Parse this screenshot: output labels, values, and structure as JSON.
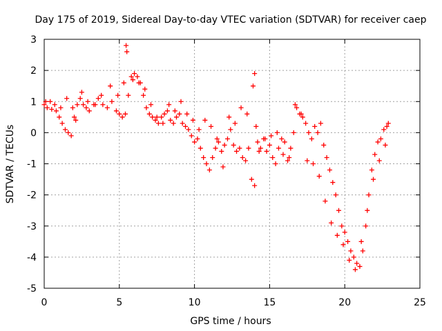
{
  "chart_data": {
    "type": "scatter",
    "title": "Day 175 of 2019, Sidereal Day-to-day VTEC variation (SDTVAR) for receiver caep",
    "xlabel": "GPS time / hours",
    "ylabel": "SDTVAR / TECUs",
    "xlim": [
      0,
      25
    ],
    "ylim": [
      -5,
      3
    ],
    "x_ticks": [
      0,
      5,
      10,
      15,
      20,
      25
    ],
    "y_ticks": [
      -5,
      -4,
      -3,
      -2,
      -1,
      0,
      1,
      2,
      3
    ],
    "x_tick_labels": [
      "0",
      "5",
      "10",
      "15",
      "20",
      "25"
    ],
    "y_tick_labels": [
      "-5",
      "-4",
      "-3",
      "-2",
      "-1",
      "0",
      "1",
      "2",
      "3"
    ],
    "grid": true,
    "marker": "+",
    "series": [
      {
        "name": "caep",
        "color": "#ff0000",
        "x": [
          0.0,
          0.2,
          0.5,
          0.8,
          1.0,
          1.2,
          1.4,
          1.6,
          1.8,
          2.0,
          2.2,
          2.4,
          2.6,
          2.8,
          3.0,
          3.3,
          3.6,
          3.9,
          4.2,
          4.5,
          4.8,
          5.0,
          5.2,
          5.4,
          5.6,
          5.8,
          6.0,
          6.2,
          6.4,
          6.6,
          6.8,
          7.0,
          7.2,
          7.4,
          7.6,
          7.8,
          8.0,
          8.2,
          8.4,
          8.6,
          8.8,
          9.0,
          9.2,
          9.4,
          9.6,
          9.8,
          10.0,
          10.2,
          10.4,
          10.6,
          10.8,
          11.0,
          11.2,
          11.4,
          11.6,
          11.8,
          12.0,
          12.2,
          12.4,
          12.6,
          12.8,
          13.0,
          13.2,
          13.4,
          13.6,
          13.8,
          14.0,
          14.2,
          14.4,
          14.6,
          14.8,
          15.0,
          15.2,
          15.4,
          15.6,
          15.8,
          16.0,
          16.2,
          16.4,
          16.6,
          16.8,
          17.0,
          17.2,
          17.4,
          17.6,
          17.8,
          18.0,
          18.2,
          18.4,
          18.6,
          18.8,
          19.0,
          19.2,
          19.4,
          19.6,
          19.8,
          20.0,
          20.2,
          20.4,
          20.6,
          20.8,
          21.0,
          21.2,
          21.4,
          21.6,
          21.8,
          22.0,
          22.2,
          22.4,
          22.6,
          22.8,
          0.1,
          0.4,
          0.7,
          1.1,
          1.5,
          1.9,
          2.1,
          2.5,
          2.9,
          3.4,
          3.8,
          4.4,
          4.9,
          5.3,
          5.45,
          5.5,
          5.9,
          6.3,
          6.7,
          7.1,
          7.5,
          7.9,
          8.3,
          8.7,
          9.1,
          9.5,
          9.9,
          10.3,
          10.7,
          11.1,
          11.5,
          11.9,
          12.3,
          12.7,
          13.1,
          13.5,
          13.9,
          14.0,
          14.1,
          14.3,
          14.7,
          15.1,
          15.5,
          15.9,
          16.3,
          16.7,
          17.1,
          17.5,
          17.9,
          18.3,
          18.7,
          19.1,
          19.5,
          19.9,
          20.3,
          20.7,
          21.1,
          21.5,
          21.9,
          22.3,
          22.7,
          22.9
        ],
        "y": [
          0.9,
          0.8,
          0.75,
          0.7,
          0.5,
          0.3,
          0.1,
          0.0,
          -0.1,
          0.5,
          0.9,
          1.1,
          0.9,
          0.8,
          0.7,
          0.9,
          1.1,
          0.9,
          0.8,
          1.0,
          0.7,
          0.6,
          0.5,
          0.6,
          1.2,
          1.8,
          1.9,
          1.8,
          1.6,
          1.2,
          0.8,
          0.6,
          0.5,
          0.4,
          0.3,
          0.5,
          0.6,
          0.7,
          0.4,
          0.3,
          0.5,
          0.6,
          0.3,
          0.2,
          0.1,
          -0.1,
          -0.3,
          -0.2,
          -0.5,
          -0.8,
          -1.0,
          -1.2,
          -0.8,
          -0.5,
          -0.3,
          -0.6,
          -0.4,
          -0.2,
          0.1,
          -0.4,
          -0.6,
          -0.5,
          -0.8,
          -0.9,
          -0.5,
          -1.5,
          -1.7,
          -0.3,
          -0.5,
          -0.2,
          -0.6,
          -0.4,
          -0.8,
          -1.0,
          -0.5,
          -0.2,
          -0.3,
          -0.9,
          -0.5,
          0.0,
          0.8,
          0.6,
          0.5,
          0.3,
          0.0,
          -0.2,
          0.2,
          0.0,
          0.3,
          -0.4,
          -0.8,
          -1.2,
          -1.6,
          -2.0,
          -2.5,
          -3.0,
          -3.2,
          -3.5,
          -3.8,
          -4.0,
          -4.2,
          -4.3,
          -3.8,
          -3.0,
          -2.0,
          -1.2,
          -0.7,
          -0.3,
          -0.2,
          0.1,
          0.2,
          1.0,
          1.0,
          0.9,
          0.8,
          1.1,
          0.8,
          0.4,
          1.3,
          1.0,
          0.9,
          1.2,
          1.5,
          1.2,
          1.6,
          2.8,
          2.6,
          1.7,
          1.6,
          1.4,
          0.9,
          0.5,
          0.3,
          0.9,
          0.7,
          1.0,
          0.6,
          0.4,
          0.1,
          0.4,
          0.2,
          -0.2,
          -1.1,
          0.5,
          0.3,
          0.8,
          0.6,
          1.5,
          1.9,
          0.2,
          -0.6,
          -0.2,
          -0.1,
          0.0,
          -0.7,
          -0.8,
          0.9,
          0.6,
          -0.9,
          -1.0,
          -1.4,
          -2.2,
          -2.9,
          -3.3,
          -3.6,
          -4.1,
          -4.4,
          -3.5,
          -2.5,
          -1.5,
          -0.9,
          -0.4,
          0.3
        ]
      }
    ]
  }
}
